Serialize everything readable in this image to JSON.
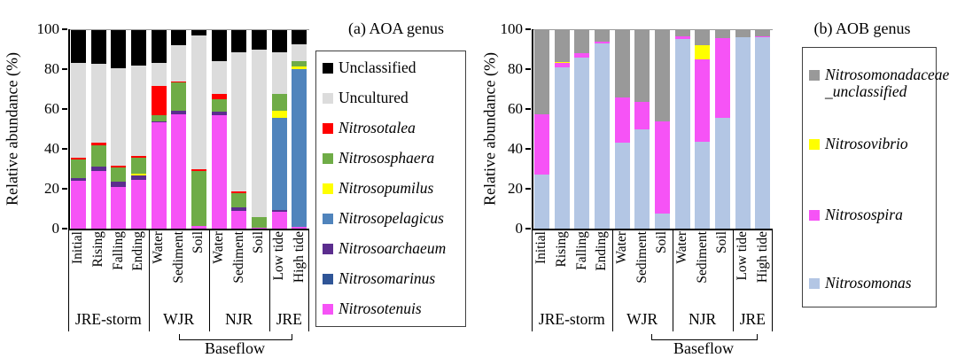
{
  "figure": {
    "ylabel": "Relative abundance (%)",
    "yticks": [
      0,
      20,
      40,
      60,
      80,
      100
    ],
    "baseflow_label": "Baseflow"
  },
  "chart_data": [
    {
      "type": "bar",
      "stacked": true,
      "title": "(a) AOA genus",
      "ylabel": "Relative abundance (%)",
      "ylim": [
        0,
        100
      ],
      "grid": false,
      "legend_position": "right",
      "categories": [
        "Initial",
        "Rising",
        "Falling",
        "Ending",
        "Water",
        "Sediment",
        "Soil",
        "Water",
        "Sediment",
        "Soil",
        "Low tide",
        "High tide"
      ],
      "groups": [
        {
          "label": "JRE-storm",
          "count": 4
        },
        {
          "label": "WJR",
          "count": 3
        },
        {
          "label": "NJR",
          "count": 3
        },
        {
          "label": "JRE",
          "count": 2
        }
      ],
      "annotation": "Baseflow",
      "series": [
        {
          "name": "Nitrosotenuis",
          "color": "#F653F6",
          "values": [
            24,
            29,
            21,
            24.5,
            53.5,
            57.5,
            1.5,
            57,
            9,
            0.5,
            8.5,
            0.7
          ]
        },
        {
          "name": "Nitrosomarinus",
          "color": "#2F5597",
          "values": [
            0,
            0,
            0,
            0,
            0,
            0,
            0,
            0,
            0,
            0,
            0,
            0
          ]
        },
        {
          "name": "Nitrosoarchaeum",
          "color": "#5B2D8E",
          "values": [
            1.5,
            2,
            2.5,
            2,
            0.5,
            1.5,
            0,
            1.5,
            1.5,
            0,
            1,
            0
          ]
        },
        {
          "name": "Nitrosopelagicus",
          "color": "#5084BC",
          "values": [
            0,
            0,
            0,
            0,
            0,
            0,
            0,
            0,
            0,
            0,
            46,
            79.3
          ]
        },
        {
          "name": "Nitrosopumilus",
          "color": "#FFFF00",
          "values": [
            0,
            0,
            0,
            1,
            0,
            0,
            0,
            0,
            0,
            0,
            3.5,
            1.5
          ]
        },
        {
          "name": "Nitrososphaera",
          "color": "#6FAC47",
          "values": [
            9,
            11,
            7,
            8,
            3,
            14.5,
            27.5,
            6.5,
            7.5,
            5.5,
            8.5,
            2.5
          ]
        },
        {
          "name": "Nitrosotalea",
          "color": "#FF0000",
          "values": [
            1,
            1,
            1,
            1,
            14.5,
            0.5,
            0.8,
            2.5,
            0.7,
            0,
            0,
            0
          ]
        },
        {
          "name": "Uncultured",
          "color": "#DCDCDC",
          "values": [
            47.5,
            39.5,
            49,
            45.5,
            11.5,
            18,
            67.2,
            16.5,
            69.8,
            84,
            21,
            8.5
          ]
        },
        {
          "name": "Unclassified",
          "color": "#000000",
          "values": [
            17,
            17.5,
            19.5,
            18,
            17,
            8,
            3,
            16,
            11.5,
            10,
            11.5,
            7.5
          ]
        }
      ],
      "legend": [
        {
          "lines": [
            "Unclassified"
          ],
          "color": "#000000",
          "italic": false
        },
        {
          "lines": [
            "Uncultured"
          ],
          "color": "#DCDCDC",
          "italic": false
        },
        {
          "lines": [
            "Nitrosotalea"
          ],
          "color": "#FF0000",
          "italic": true
        },
        {
          "lines": [
            "Nitrososphaera"
          ],
          "color": "#6FAC47",
          "italic": true
        },
        {
          "lines": [
            "Nitrosopumilus"
          ],
          "color": "#FFFF00",
          "italic": true
        },
        {
          "lines": [
            "Nitrosopelagicus"
          ],
          "color": "#5084BC",
          "italic": true
        },
        {
          "lines": [
            "Nitrosoarchaeum"
          ],
          "color": "#5B2D8E",
          "italic": true
        },
        {
          "lines": [
            "Nitrosomarinus"
          ],
          "color": "#2F5597",
          "italic": true
        },
        {
          "lines": [
            "Nitrosotenuis"
          ],
          "color": "#F653F6",
          "italic": true
        }
      ]
    },
    {
      "type": "bar",
      "stacked": true,
      "title": "(b) AOB genus",
      "ylabel": "Relative abundance (%)",
      "ylim": [
        0,
        100
      ],
      "grid": false,
      "legend_position": "right",
      "categories": [
        "Initial",
        "Rising",
        "Falling",
        "Ending",
        "Water",
        "Sediment",
        "Soil",
        "Water",
        "Sediment",
        "Soil",
        "Low tide",
        "High tide"
      ],
      "groups": [
        {
          "label": "JRE-storm",
          "count": 4
        },
        {
          "label": "WJR",
          "count": 3
        },
        {
          "label": "NJR",
          "count": 3
        },
        {
          "label": "JRE",
          "count": 2
        }
      ],
      "annotation": "Baseflow",
      "series": [
        {
          "name": "Nitrosomonas",
          "color": "#B3C6E4",
          "values": [
            27,
            81,
            86,
            93,
            43,
            50,
            7.5,
            95,
            43.5,
            55.5,
            96,
            96
          ]
        },
        {
          "name": "Nitrosospira",
          "color": "#F653F6",
          "values": [
            30.5,
            2,
            2,
            1,
            23,
            13.5,
            46.5,
            1.5,
            41.5,
            40,
            0,
            0.5
          ]
        },
        {
          "name": "Nitrosovibrio",
          "color": "#FFFF00",
          "values": [
            0,
            0.7,
            0,
            0,
            0,
            0,
            0,
            0,
            7,
            0,
            0,
            0
          ]
        },
        {
          "name": "Nitrosomonadaceae_unclassified",
          "color": "#999999",
          "values": [
            42.5,
            16.3,
            12,
            6,
            34,
            36.5,
            46,
            3.5,
            8,
            4.5,
            4,
            3.5
          ]
        }
      ],
      "legend": [
        {
          "lines": [
            "Nitrosomonadaceae",
            "_unclassified"
          ],
          "color": "#999999",
          "italic": true
        },
        {
          "lines": [
            "Nitrosovibrio"
          ],
          "color": "#FFFF00",
          "italic": true
        },
        {
          "lines": [
            "Nitrosospira"
          ],
          "color": "#F653F6",
          "italic": true
        },
        {
          "lines": [
            "Nitrosomonas"
          ],
          "color": "#B3C6E4",
          "italic": true
        }
      ]
    }
  ]
}
